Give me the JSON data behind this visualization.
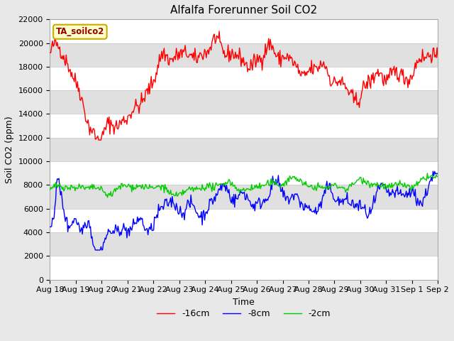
{
  "title": "Alfalfa Forerunner Soil CO2",
  "ylabel": "Soil CO2 (ppm)",
  "xlabel": "Time",
  "ylim": [
    0,
    22000
  ],
  "yticks": [
    0,
    2000,
    4000,
    6000,
    8000,
    10000,
    12000,
    14000,
    16000,
    18000,
    20000,
    22000
  ],
  "xtick_labels": [
    "Aug 18",
    "Aug 19",
    "Aug 20",
    "Aug 21",
    "Aug 22",
    "Aug 23",
    "Aug 24",
    "Aug 25",
    "Aug 26",
    "Aug 27",
    "Aug 28",
    "Aug 29",
    "Aug 30",
    "Aug 31",
    "Sep 1",
    "Sep 2"
  ],
  "legend_entries": [
    "-16cm",
    "-8cm",
    "-2cm"
  ],
  "legend_colors": [
    "#ff0000",
    "#0000ff",
    "#00cc00"
  ],
  "sensor_label": "TA_soilco2",
  "fig_bg_color": "#e8e8e8",
  "plot_bg_color": "#ffffff",
  "band_color": "#e0e0e0",
  "title_fontsize": 11,
  "axis_label_fontsize": 9,
  "tick_fontsize": 8,
  "n_points": 480,
  "line_width": 1.0
}
